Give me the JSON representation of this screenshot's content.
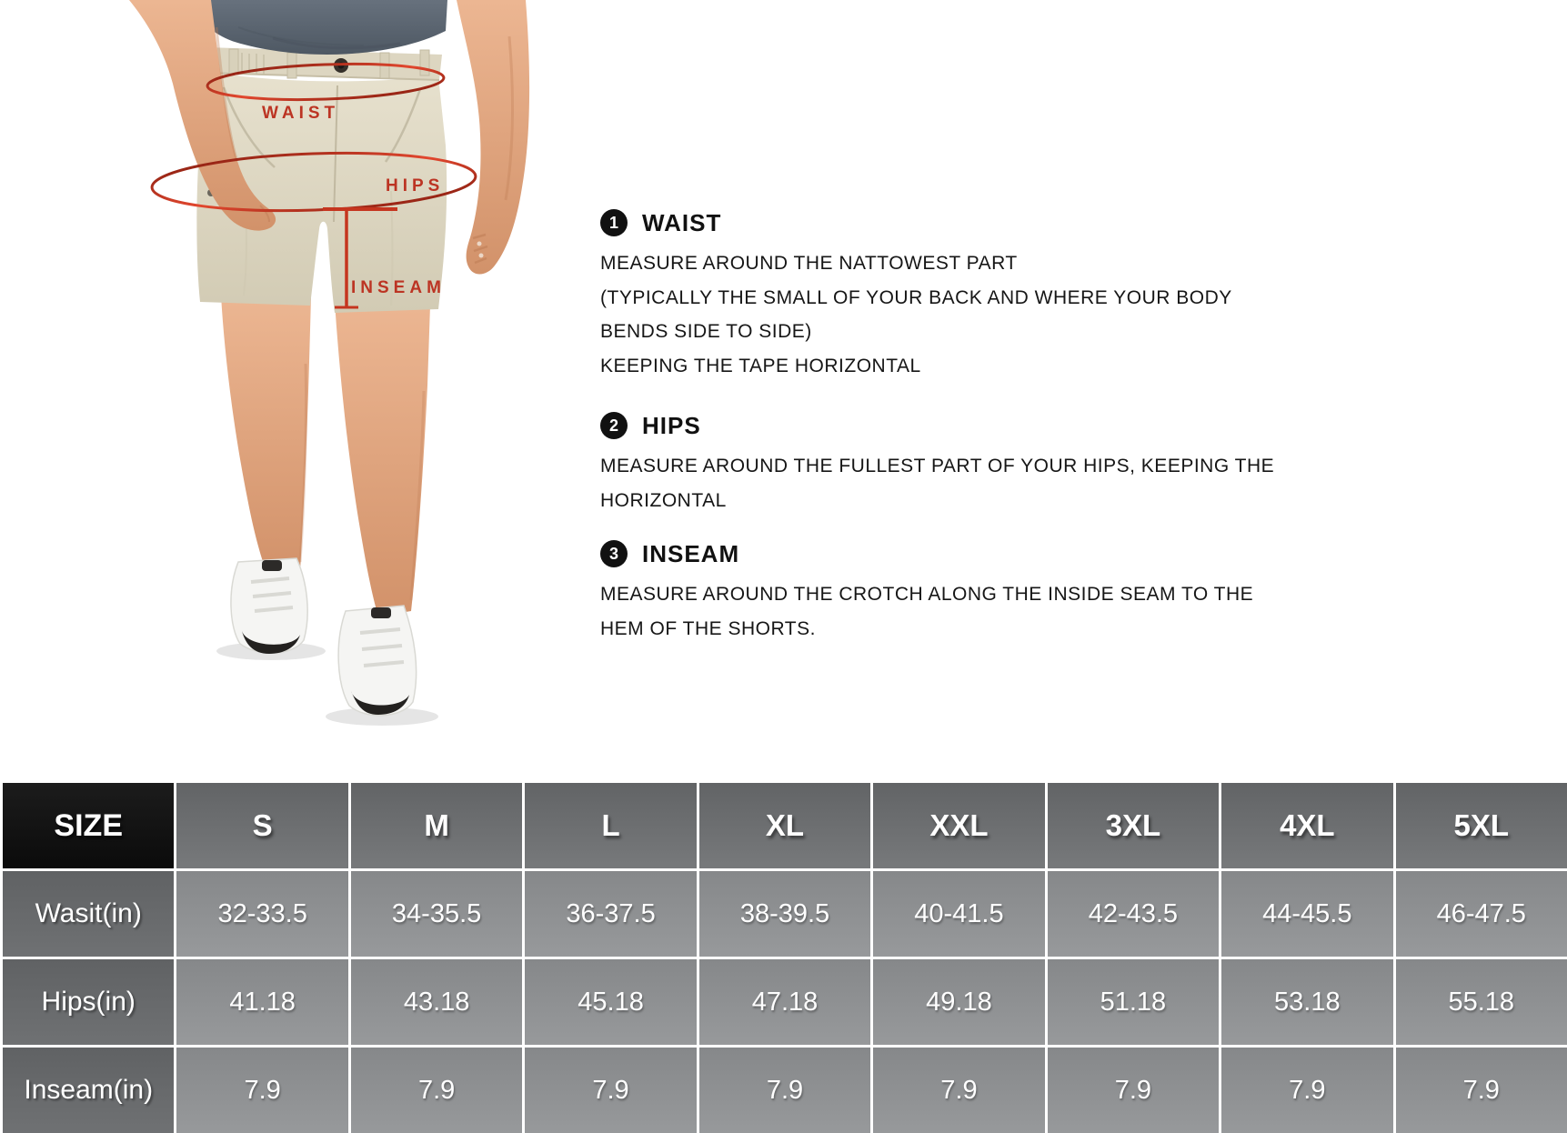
{
  "colors": {
    "accent_red": "#bc3423",
    "table_text": "#ffffff",
    "text_dark": "#111111"
  },
  "figure": {
    "waist_label": "WAIST",
    "hips_label": "HIPS",
    "inseam_label": "INSEAM"
  },
  "instructions": [
    {
      "number": "1",
      "title": "WAIST",
      "lines": [
        "MEASURE AROUND THE NATTOWEST PART",
        "(TYPICALLY THE SMALL OF YOUR BACK AND WHERE YOUR BODY",
        "BENDS SIDE TO SIDE)",
        "KEEPING THE TAPE HORIZONTAL"
      ]
    },
    {
      "number": "2",
      "title": "HIPS",
      "lines": [
        "MEASURE AROUND THE FULLEST PART OF YOUR HIPS, KEEPING THE",
        "HORIZONTAL"
      ]
    },
    {
      "number": "3",
      "title": "INSEAM",
      "lines": [
        "MEASURE AROUND THE CROTCH ALONG THE INSIDE SEAM TO THE",
        "HEM OF THE SHORTS."
      ]
    }
  ],
  "size_table": {
    "header": [
      "SIZE",
      "S",
      "M",
      "L",
      "XL",
      "XXL",
      "3XL",
      "4XL",
      "5XL"
    ],
    "rows": [
      {
        "label": "Wasit(in)",
        "values": [
          "32-33.5",
          "34-35.5",
          "36-37.5",
          "38-39.5",
          "40-41.5",
          "42-43.5",
          "44-45.5",
          "46-47.5"
        ]
      },
      {
        "label": "Hips(in)",
        "values": [
          "41.18",
          "43.18",
          "45.18",
          "47.18",
          "49.18",
          "51.18",
          "53.18",
          "55.18"
        ]
      },
      {
        "label": "Inseam(in)",
        "values": [
          "7.9",
          "7.9",
          "7.9",
          "7.9",
          "7.9",
          "7.9",
          "7.9",
          "7.9"
        ]
      }
    ]
  }
}
